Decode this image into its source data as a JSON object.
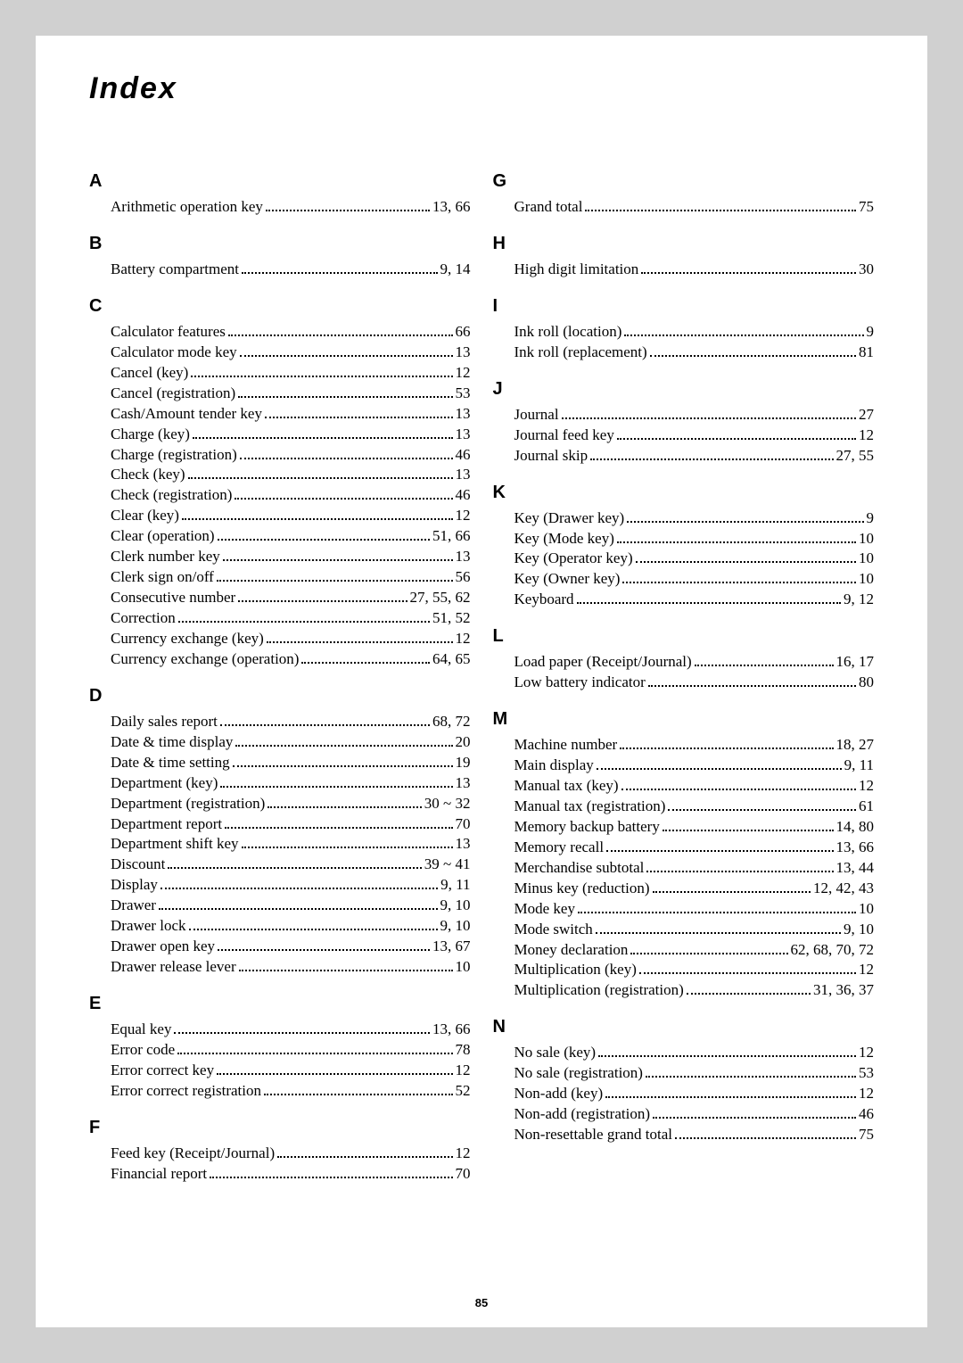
{
  "title": "Index",
  "page_number": "85",
  "columns": [
    [
      {
        "letter": "A",
        "items": [
          {
            "label": "Arithmetic operation key",
            "pages": "13, 66"
          }
        ]
      },
      {
        "letter": "B",
        "items": [
          {
            "label": "Battery compartment",
            "pages": "9, 14"
          }
        ]
      },
      {
        "letter": "C",
        "items": [
          {
            "label": "Calculator features",
            "pages": "66"
          },
          {
            "label": "Calculator mode key",
            "pages": "13"
          },
          {
            "label": "Cancel (key)",
            "pages": "12"
          },
          {
            "label": "Cancel (registration)",
            "pages": "53"
          },
          {
            "label": "Cash/Amount tender key",
            "pages": "13"
          },
          {
            "label": "Charge (key)",
            "pages": "13"
          },
          {
            "label": "Charge (registration)",
            "pages": "46"
          },
          {
            "label": "Check (key)",
            "pages": "13"
          },
          {
            "label": "Check (registration)",
            "pages": "46"
          },
          {
            "label": "Clear (key)",
            "pages": "12"
          },
          {
            "label": "Clear (operation)",
            "pages": "51, 66"
          },
          {
            "label": "Clerk number key",
            "pages": "13"
          },
          {
            "label": "Clerk sign on/off",
            "pages": "56"
          },
          {
            "label": "Consecutive number",
            "pages": "27, 55, 62"
          },
          {
            "label": "Correction",
            "pages": "51, 52"
          },
          {
            "label": "Currency exchange (key)",
            "pages": "12"
          },
          {
            "label": "Currency exchange (operation)",
            "pages": "64, 65"
          }
        ]
      },
      {
        "letter": "D",
        "items": [
          {
            "label": "Daily sales report",
            "pages": "68, 72"
          },
          {
            "label": "Date & time display",
            "pages": "20"
          },
          {
            "label": "Date & time setting",
            "pages": "19"
          },
          {
            "label": "Department (key)",
            "pages": "13"
          },
          {
            "label": "Department (registration)",
            "pages": " 30 ~ 32"
          },
          {
            "label": "Department report",
            "pages": "70"
          },
          {
            "label": "Department shift key",
            "pages": "13"
          },
          {
            "label": "Discount",
            "pages": " 39 ~ 41"
          },
          {
            "label": "Display",
            "pages": "9, 11"
          },
          {
            "label": "Drawer",
            "pages": "9, 10"
          },
          {
            "label": "Drawer lock",
            "pages": "9, 10"
          },
          {
            "label": "Drawer open key",
            "pages": "13, 67"
          },
          {
            "label": "Drawer release lever",
            "pages": "10"
          }
        ]
      },
      {
        "letter": "E",
        "items": [
          {
            "label": "Equal key",
            "pages": "13, 66"
          },
          {
            "label": "Error code",
            "pages": "78"
          },
          {
            "label": "Error correct key",
            "pages": "12"
          },
          {
            "label": "Error correct registration",
            "pages": "52"
          }
        ]
      },
      {
        "letter": "F",
        "items": [
          {
            "label": "Feed key (Receipt/Journal)",
            "pages": "12"
          },
          {
            "label": "Financial report",
            "pages": "70"
          }
        ]
      }
    ],
    [
      {
        "letter": "G",
        "items": [
          {
            "label": "Grand total",
            "pages": "75"
          }
        ]
      },
      {
        "letter": "H",
        "items": [
          {
            "label": "High digit limitation",
            "pages": "30"
          }
        ]
      },
      {
        "letter": "I",
        "items": [
          {
            "label": "Ink roll (location)",
            "pages": "9"
          },
          {
            "label": "Ink roll (replacement)",
            "pages": "81"
          }
        ]
      },
      {
        "letter": "J",
        "items": [
          {
            "label": "Journal",
            "pages": "27"
          },
          {
            "label": "Journal feed key",
            "pages": "12"
          },
          {
            "label": "Journal skip",
            "pages": "27, 55"
          }
        ]
      },
      {
        "letter": "K",
        "items": [
          {
            "label": "Key (Drawer key)",
            "pages": "9"
          },
          {
            "label": "Key (Mode key)",
            "pages": "10"
          },
          {
            "label": "Key (Operator key)",
            "pages": "10"
          },
          {
            "label": "Key (Owner key)",
            "pages": "10"
          },
          {
            "label": "Keyboard",
            "pages": "9, 12"
          }
        ]
      },
      {
        "letter": "L",
        "items": [
          {
            "label": "Load paper (Receipt/Journal)",
            "pages": "16, 17"
          },
          {
            "label": "Low battery indicator",
            "pages": "80"
          }
        ]
      },
      {
        "letter": "M",
        "items": [
          {
            "label": "Machine number",
            "pages": "18, 27"
          },
          {
            "label": "Main display",
            "pages": "9, 11"
          },
          {
            "label": "Manual tax (key)",
            "pages": "12"
          },
          {
            "label": "Manual tax (registration)",
            "pages": "61"
          },
          {
            "label": "Memory backup battery",
            "pages": "14, 80"
          },
          {
            "label": "Memory recall",
            "pages": "13, 66"
          },
          {
            "label": "Merchandise subtotal",
            "pages": "13, 44"
          },
          {
            "label": "Minus key (reduction)",
            "pages": "12, 42, 43"
          },
          {
            "label": "Mode key",
            "pages": "10"
          },
          {
            "label": "Mode switch",
            "pages": "9, 10"
          },
          {
            "label": "Money declaration",
            "pages": "62, 68, 70, 72"
          },
          {
            "label": "Multiplication (key)",
            "pages": "12"
          },
          {
            "label": "Multiplication (registration)",
            "pages": "31, 36, 37"
          }
        ]
      },
      {
        "letter": "N",
        "items": [
          {
            "label": "No sale (key)",
            "pages": "12"
          },
          {
            "label": "No sale (registration)",
            "pages": "53"
          },
          {
            "label": "Non-add (key)",
            "pages": "12"
          },
          {
            "label": "Non-add (registration)",
            "pages": "46"
          },
          {
            "label": "Non-resettable grand total",
            "pages": "75"
          }
        ]
      }
    ]
  ]
}
